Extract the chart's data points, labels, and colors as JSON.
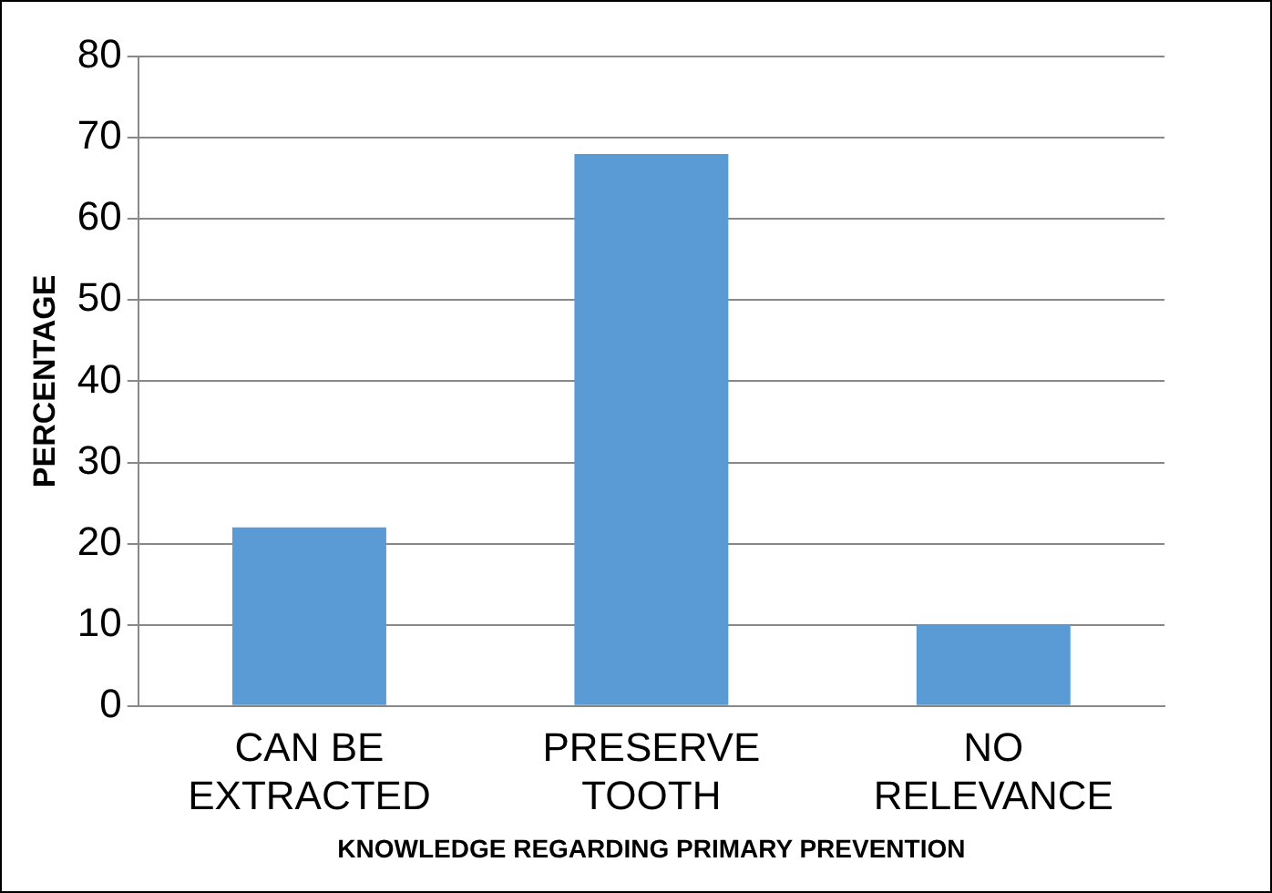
{
  "chart_data": {
    "type": "bar",
    "xlabel": "KNOWLEDGE REGARDING PRIMARY PREVENTION",
    "ylabel": "PERCENTAGE",
    "categories": [
      "CAN BE EXTRACTED",
      "PRESERVE TOOTH",
      "NO RELEVANCE"
    ],
    "values": [
      22,
      68,
      10
    ],
    "color": "#5b9bd5",
    "ylim": [
      0,
      80
    ],
    "yticks": [
      0,
      10,
      20,
      30,
      40,
      50,
      60,
      70,
      80
    ],
    "grid": "y",
    "legend": false
  }
}
